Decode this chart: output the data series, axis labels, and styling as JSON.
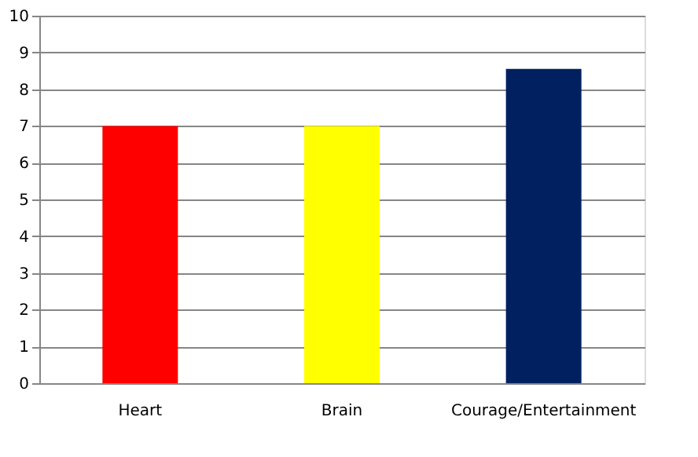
{
  "chart_data": {
    "type": "bar",
    "categories": [
      "Heart",
      "Brain",
      "Courage/Entertainment"
    ],
    "values": [
      7,
      7,
      8.55
    ],
    "colors": [
      "#ff0000",
      "#ffff00",
      "#002060"
    ],
    "ylim": [
      0,
      10
    ],
    "yticks": [
      0,
      1,
      2,
      3,
      4,
      5,
      6,
      7,
      8,
      9,
      10
    ],
    "grid": "y",
    "legend": false
  }
}
